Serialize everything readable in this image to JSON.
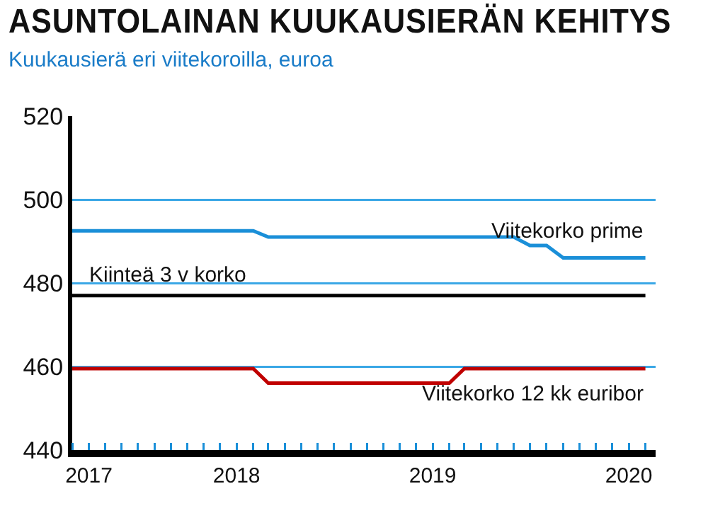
{
  "chart_data": {
    "type": "line",
    "title": "ASUNTOLAINAN KUUKAUSIERÄN KEHITYS",
    "subtitle": "Kuukausierä eri viitekoroilla, euroa",
    "series": [
      {
        "name": "Viitekorko prime",
        "color": "#1a8fd8",
        "x": [
          "2017-03",
          "2018-02",
          "2018-03",
          "2019-06",
          "2019-07",
          "2019-08",
          "2019-09",
          "2020-02"
        ],
        "values": [
          492.5,
          492.5,
          491,
          491,
          489,
          489,
          486,
          486
        ]
      },
      {
        "name": "Kiinteä 3 v korko",
        "color": "#000000",
        "x": [
          "2017-03",
          "2020-02"
        ],
        "values": [
          477,
          477
        ]
      },
      {
        "name": "Viitekorko 12 kk euribor",
        "color": "#c00000",
        "x": [
          "2017-03",
          "2018-02",
          "2018-03",
          "2019-02",
          "2019-03",
          "2020-02"
        ],
        "values": [
          459.5,
          459.5,
          456,
          456,
          459.5,
          459.5
        ]
      }
    ],
    "xlim": [
      "2017-03-01",
      "2020-02-20"
    ],
    "xticks": [
      {
        "value": "2017-04-01",
        "label": "2017"
      },
      {
        "value": "2018",
        "label": "2018"
      },
      {
        "value": "2019",
        "label": "2019"
      },
      {
        "value": "2020",
        "label": "2020"
      }
    ],
    "ylim": [
      440,
      520
    ],
    "yticks": [
      440,
      460,
      480,
      500,
      520
    ],
    "grid": "y",
    "legend": false,
    "marker": "none",
    "line_style": "solid"
  }
}
